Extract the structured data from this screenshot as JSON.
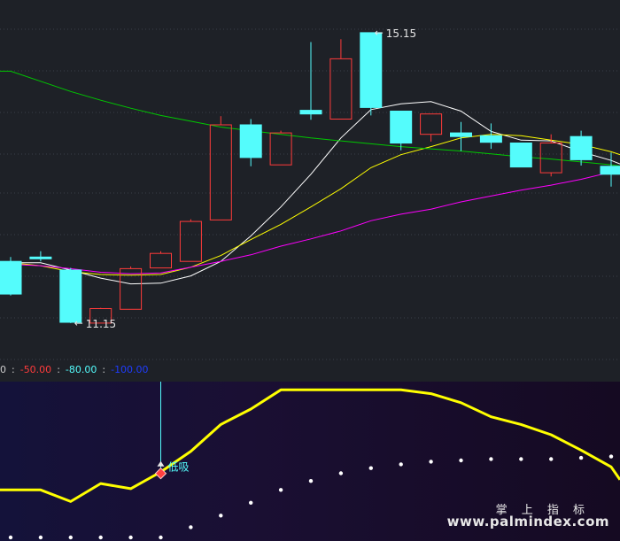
{
  "chart_data": [
    {
      "type": "candlestick",
      "panel": "main",
      "ylim": [
        10.6,
        15.6
      ],
      "grid": true,
      "up_color": "#ff3b3b",
      "down_color": "#54fcfc",
      "candles": [
        {
          "o": 12.0,
          "h": 12.06,
          "l": 11.53,
          "c": 11.55
        },
        {
          "o": 12.06,
          "h": 12.14,
          "l": 12.0,
          "c": 12.04
        },
        {
          "o": 11.88,
          "h": 11.91,
          "l": 11.15,
          "c": 11.16
        },
        {
          "o": 11.15,
          "h": 11.36,
          "l": 11.15,
          "c": 11.35
        },
        {
          "o": 11.34,
          "h": 11.93,
          "l": 11.34,
          "c": 11.9
        },
        {
          "o": 11.91,
          "h": 12.14,
          "l": 11.91,
          "c": 12.11
        },
        {
          "o": 12.0,
          "h": 12.58,
          "l": 12.0,
          "c": 12.55
        },
        {
          "o": 12.57,
          "h": 14.0,
          "l": 12.57,
          "c": 13.88
        },
        {
          "o": 13.88,
          "h": 13.96,
          "l": 13.31,
          "c": 13.43
        },
        {
          "o": 13.33,
          "h": 13.8,
          "l": 13.33,
          "c": 13.77
        },
        {
          "o": 14.08,
          "h": 15.02,
          "l": 13.95,
          "c": 14.03
        },
        {
          "o": 13.96,
          "h": 15.06,
          "l": 13.96,
          "c": 14.79
        },
        {
          "o": 15.15,
          "h": 15.15,
          "l": 14.01,
          "c": 14.12
        },
        {
          "o": 14.07,
          "h": 14.07,
          "l": 13.53,
          "c": 13.63
        },
        {
          "o": 13.75,
          "h": 14.03,
          "l": 13.65,
          "c": 14.03
        },
        {
          "o": 13.77,
          "h": 13.92,
          "l": 13.52,
          "c": 13.72
        },
        {
          "o": 13.73,
          "h": 13.9,
          "l": 13.55,
          "c": 13.64
        },
        {
          "o": 13.63,
          "h": 13.63,
          "l": 13.3,
          "c": 13.3
        },
        {
          "o": 13.22,
          "h": 13.75,
          "l": 13.17,
          "c": 13.63
        },
        {
          "o": 13.72,
          "h": 13.8,
          "l": 13.32,
          "c": 13.4
        },
        {
          "o": 13.31,
          "h": 13.5,
          "l": 13.03,
          "c": 13.2
        }
      ],
      "series": [
        {
          "color": "#ffffff",
          "values": [
            11.98,
            11.98,
            11.88,
            11.77,
            11.69,
            11.7,
            11.8,
            12.0,
            12.35,
            12.75,
            13.2,
            13.7,
            14.09,
            14.17,
            14.2,
            14.07,
            13.79,
            13.67,
            13.66,
            13.51,
            13.39
          ]
        },
        {
          "color": "#ffff00",
          "values": [
            11.98,
            11.94,
            11.86,
            11.82,
            11.81,
            11.82,
            11.92,
            12.08,
            12.3,
            12.51,
            12.75,
            13.0,
            13.29,
            13.47,
            13.58,
            13.7,
            13.75,
            13.73,
            13.67,
            13.61,
            13.51
          ]
        },
        {
          "color": "#ff00ff",
          "values": [
            11.96,
            11.94,
            11.9,
            11.85,
            11.83,
            11.84,
            11.92,
            12.0,
            12.09,
            12.21,
            12.31,
            12.42,
            12.56,
            12.65,
            12.72,
            12.82,
            12.9,
            12.98,
            13.05,
            13.13,
            13.23
          ]
        },
        {
          "color": "#00c800",
          "values": [
            14.62,
            14.48,
            14.34,
            14.22,
            14.11,
            14.01,
            13.93,
            13.85,
            13.8,
            13.75,
            13.7,
            13.66,
            13.62,
            13.58,
            13.55,
            13.52,
            13.48,
            13.44,
            13.41,
            13.37,
            13.33
          ]
        }
      ],
      "annotations": [
        {
          "label": "15.15",
          "at_candle": 12,
          "price": 15.15
        },
        {
          "label": "11.15",
          "at_candle": 2,
          "price": 11.15
        }
      ]
    },
    {
      "type": "line",
      "panel": "indicator",
      "ylim": [
        -115,
        5
      ],
      "legend": [
        {
          "text": "0",
          "color": "#cccccc"
        },
        {
          "text": ":",
          "color": "#cccccc"
        },
        {
          "text": "-50.00",
          "color": "#ff3b3b"
        },
        {
          "text": ":",
          "color": "#cccccc"
        },
        {
          "text": "-80.00",
          "color": "#54fcfc"
        },
        {
          "text": ":",
          "color": "#cccccc"
        },
        {
          "text": "-100.00",
          "color": "#1e3cff"
        }
      ],
      "line": {
        "color": "#ffff00",
        "values": [
          -78,
          -78,
          -87,
          -73,
          -77,
          -64,
          -48,
          -27,
          -15,
          0,
          0,
          0,
          0,
          0,
          -3,
          -10,
          -21,
          -27,
          -35,
          -47,
          -60
        ]
      },
      "dots": {
        "color": "#ffffff",
        "values": [
          -115,
          -115,
          -115,
          -115,
          -115,
          -115,
          -107,
          -98,
          -88,
          -78,
          -71,
          -65,
          -61,
          -58,
          -56,
          -55,
          -54,
          -54,
          -54,
          -53,
          -52
        ]
      },
      "signal": {
        "label": "低吸",
        "at_candle": 5,
        "level": -61,
        "color": "#54fcfc",
        "marker_color": "#ff4040"
      }
    }
  ],
  "watermark": {
    "name": "掌 上 指 标",
    "url": "www.palmindex.com"
  }
}
